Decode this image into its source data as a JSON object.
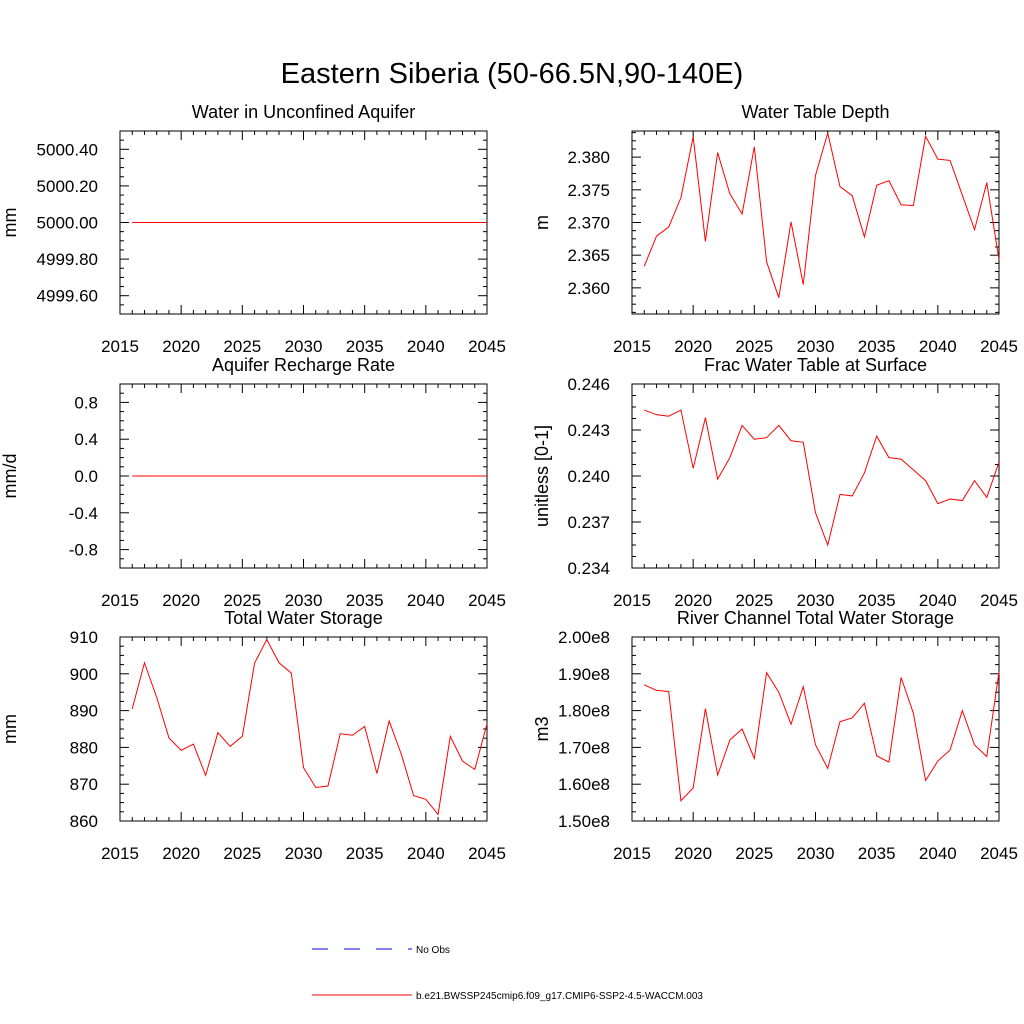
{
  "title": "Eastern Siberia (50-66.5N,90-140E)",
  "colors": {
    "model": "#ff0000",
    "obs": "#0000ff"
  },
  "legend": {
    "obs_label": "No Obs",
    "model_label": "b.e21.BWSSP245cmip6.f09_g17.CMIP6-SSP2-4.5-WACCM.003"
  },
  "chart_data": [
    {
      "type": "line",
      "title": "Water in Unconfined Aquifer",
      "ylabel": "mm",
      "xlim": [
        2015,
        2045
      ],
      "ylim": [
        4999.5,
        5000.5
      ],
      "x_ticks": [
        "2015",
        "2020",
        "2025",
        "2030",
        "2035",
        "2040",
        "2045"
      ],
      "y_ticks": [
        "4999.60",
        "4999.80",
        "5000.00",
        "5000.20",
        "5000.40"
      ],
      "y_tick_values": [
        4999.6,
        4999.8,
        5000.0,
        5000.2,
        5000.4
      ],
      "series": [
        {
          "name": "b.e21.BWSSP245cmip6.f09_g17.CMIP6-SSP2-4.5-WACCM.003",
          "x": [
            2016,
            2045
          ],
          "values": [
            5000.0,
            5000.0
          ]
        }
      ]
    },
    {
      "type": "line",
      "title": "Water Table Depth",
      "ylabel": "m",
      "xlim": [
        2015,
        2045
      ],
      "ylim": [
        2.356,
        2.384
      ],
      "x_ticks": [
        "2015",
        "2020",
        "2025",
        "2030",
        "2035",
        "2040",
        "2045"
      ],
      "y_ticks": [
        "2.360",
        "2.365",
        "2.370",
        "2.375",
        "2.380"
      ],
      "y_tick_values": [
        2.36,
        2.365,
        2.37,
        2.375,
        2.38
      ],
      "series": [
        {
          "name": "b.e21.BWSSP245cmip6.f09_g17.CMIP6-SSP2-4.5-WACCM.003",
          "x": [
            2016,
            2017,
            2018,
            2019,
            2020,
            2021,
            2022,
            2023,
            2024,
            2025,
            2026,
            2027,
            2028,
            2029,
            2030,
            2031,
            2032,
            2033,
            2034,
            2035,
            2036,
            2037,
            2038,
            2039,
            2040,
            2041,
            2042,
            2043,
            2044,
            2045
          ],
          "values": [
            2.3633,
            2.3679,
            2.3693,
            2.3738,
            2.3831,
            2.3671,
            2.3807,
            2.3744,
            2.3713,
            2.3816,
            2.364,
            2.3585,
            2.3701,
            2.3605,
            2.3772,
            2.3837,
            2.3755,
            2.3741,
            2.3678,
            2.3757,
            2.3764,
            2.3727,
            2.3726,
            2.3832,
            2.3797,
            2.3795,
            2.3742,
            2.3689,
            2.3761,
            2.3643
          ]
        }
      ]
    },
    {
      "type": "line",
      "title": "Aquifer Recharge Rate",
      "ylabel": "mm/d",
      "xlim": [
        2015,
        2045
      ],
      "ylim": [
        -1.0,
        1.0
      ],
      "x_ticks": [
        "2015",
        "2020",
        "2025",
        "2030",
        "2035",
        "2040",
        "2045"
      ],
      "y_ticks": [
        "-0.8",
        "-0.4",
        "0.0",
        "0.4",
        "0.8"
      ],
      "y_tick_values": [
        -0.8,
        -0.4,
        0.0,
        0.4,
        0.8
      ],
      "series": [
        {
          "name": "b.e21.BWSSP245cmip6.f09_g17.CMIP6-SSP2-4.5-WACCM.003",
          "x": [
            2016,
            2045
          ],
          "values": [
            0.0,
            0.0
          ]
        }
      ]
    },
    {
      "type": "line",
      "title": "Frac Water Table at Surface",
      "ylabel": "unitless [0-1]",
      "xlim": [
        2015,
        2045
      ],
      "ylim": [
        0.234,
        0.246
      ],
      "x_ticks": [
        "2015",
        "2020",
        "2025",
        "2030",
        "2035",
        "2040",
        "2045"
      ],
      "y_ticks": [
        "0.234",
        "0.237",
        "0.240",
        "0.243",
        "0.246"
      ],
      "y_tick_values": [
        0.234,
        0.237,
        0.24,
        0.243,
        0.246
      ],
      "series": [
        {
          "name": "b.e21.BWSSP245cmip6.f09_g17.CMIP6-SSP2-4.5-WACCM.003",
          "x": [
            2016,
            2017,
            2018,
            2019,
            2020,
            2021,
            2022,
            2023,
            2024,
            2025,
            2026,
            2027,
            2028,
            2029,
            2030,
            2031,
            2032,
            2033,
            2034,
            2035,
            2036,
            2037,
            2038,
            2039,
            2040,
            2041,
            2042,
            2043,
            2044,
            2045
          ],
          "values": [
            0.2443,
            0.244,
            0.2439,
            0.2443,
            0.2405,
            0.2438,
            0.2398,
            0.2412,
            0.2433,
            0.2424,
            0.2425,
            0.2433,
            0.2423,
            0.2422,
            0.2376,
            0.2355,
            0.2388,
            0.2387,
            0.2402,
            0.2426,
            0.2412,
            0.2411,
            0.2404,
            0.2397,
            0.2382,
            0.2385,
            0.2384,
            0.2397,
            0.2386,
            0.2409
          ]
        }
      ]
    },
    {
      "type": "line",
      "title": "Total Water Storage",
      "ylabel": "mm",
      "xlim": [
        2015,
        2045
      ],
      "ylim": [
        860,
        910
      ],
      "x_ticks": [
        "2015",
        "2020",
        "2025",
        "2030",
        "2035",
        "2040",
        "2045"
      ],
      "y_ticks": [
        "860",
        "870",
        "880",
        "890",
        "900",
        "910"
      ],
      "y_tick_values": [
        860,
        870,
        880,
        890,
        900,
        910
      ],
      "series": [
        {
          "name": "b.e21.BWSSP245cmip6.f09_g17.CMIP6-SSP2-4.5-WACCM.003",
          "x": [
            2016,
            2017,
            2018,
            2019,
            2020,
            2021,
            2022,
            2023,
            2024,
            2025,
            2026,
            2027,
            2028,
            2029,
            2030,
            2031,
            2032,
            2033,
            2034,
            2035,
            2036,
            2037,
            2038,
            2039,
            2040,
            2041,
            2042,
            2043,
            2044,
            2045
          ],
          "values": [
            890.5,
            903.0,
            893.6,
            882.6,
            879.2,
            880.9,
            872.4,
            884.0,
            880.3,
            883.0,
            902.9,
            909.3,
            903.0,
            900.2,
            874.5,
            869.1,
            869.5,
            883.7,
            883.3,
            885.7,
            872.9,
            887.2,
            878.1,
            866.9,
            865.9,
            861.8,
            883.0,
            876.3,
            874.0,
            886.4
          ]
        }
      ]
    },
    {
      "type": "line",
      "title": "River Channel Total Water Storage",
      "ylabel": "m3",
      "xlim": [
        2015,
        2045
      ],
      "ylim": [
        150000000,
        200000000
      ],
      "x_ticks": [
        "2015",
        "2020",
        "2025",
        "2030",
        "2035",
        "2040",
        "2045"
      ],
      "y_ticks": [
        "1.50e8",
        "1.60e8",
        "1.70e8",
        "1.80e8",
        "1.90e8",
        "2.00e8"
      ],
      "y_tick_values": [
        150000000,
        160000000,
        170000000,
        180000000,
        190000000,
        200000000
      ],
      "series": [
        {
          "name": "b.e21.BWSSP245cmip6.f09_g17.CMIP6-SSP2-4.5-WACCM.003",
          "x": [
            2016,
            2017,
            2018,
            2019,
            2020,
            2021,
            2022,
            2023,
            2024,
            2025,
            2026,
            2027,
            2028,
            2029,
            2030,
            2031,
            2032,
            2033,
            2034,
            2035,
            2036,
            2037,
            2038,
            2039,
            2040,
            2041,
            2042,
            2043,
            2044,
            2045
          ],
          "values": [
            187000000,
            185500000,
            185200000,
            155500000,
            159000000,
            180500000,
            162500000,
            172000000,
            175000000,
            167000000,
            190300000,
            185000000,
            176300000,
            186500000,
            170700000,
            164300000,
            177000000,
            178000000,
            182000000,
            167700000,
            166000000,
            189000000,
            179300000,
            161000000,
            166300000,
            169300000,
            180000000,
            170700000,
            167500000,
            190500000
          ]
        }
      ]
    }
  ]
}
